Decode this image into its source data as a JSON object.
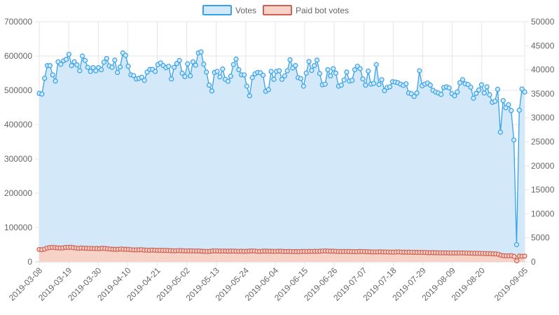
{
  "chart_data": {
    "type": "line",
    "legend_position": "top",
    "grid": true,
    "x": {
      "start": "2019-03-08",
      "end": "2019-09-05",
      "tick_labels": [
        "2019-03-08",
        "2019-03-19",
        "2019-03-30",
        "2019-04-10",
        "2019-04-21",
        "2019-05-02",
        "2019-05-13",
        "2019-05-24",
        "2019-06-04",
        "2019-06-15",
        "2019-06-26",
        "2019-07-07",
        "2019-07-18",
        "2019-07-29",
        "2019-08-09",
        "2019-08-20",
        "2019-09-05"
      ]
    },
    "y_left": {
      "min": 0,
      "max": 700000,
      "ticks": [
        "0",
        "100000",
        "200000",
        "300000",
        "400000",
        "500000",
        "600000",
        "700000"
      ]
    },
    "y_right": {
      "min": 0,
      "max": 50000,
      "ticks": [
        "0",
        "5000",
        "10000",
        "15000",
        "20000",
        "25000",
        "30000",
        "35000",
        "40000",
        "45000",
        "50000"
      ]
    },
    "series": [
      {
        "name": "Votes",
        "axis": "left",
        "line_color": "#36a2eb",
        "fill_color": "#d3e9f9",
        "values": [
          491000,
          489000,
          535000,
          572000,
          572000,
          545000,
          527000,
          583000,
          576000,
          586000,
          590000,
          605000,
          572000,
          583000,
          574000,
          557000,
          600000,
          587000,
          567000,
          555000,
          566000,
          557000,
          566000,
          560000,
          582000,
          593000,
          571000,
          567000,
          588000,
          552000,
          568000,
          609000,
          602000,
          570000,
          545000,
          543000,
          533000,
          535000,
          538000,
          529000,
          553000,
          561000,
          561000,
          555000,
          575000,
          580000,
          572000,
          566000,
          570000,
          533000,
          567000,
          578000,
          587000,
          550000,
          540000,
          577000,
          542000,
          583000,
          573000,
          609000,
          612000,
          576000,
          553000,
          515000,
          498000,
          552000,
          555000,
          539000,
          562000,
          532000,
          526000,
          541000,
          575000,
          591000,
          560000,
          545000,
          545000,
          512000,
          484000,
          537000,
          548000,
          552000,
          551000,
          544000,
          497000,
          502000,
          555000,
          532000,
          555000,
          557000,
          532000,
          542000,
          557000,
          589000,
          565000,
          572000,
          537000,
          534000,
          512000,
          550000,
          584000,
          558000,
          572000,
          588000,
          549000,
          516000,
          518000,
          560000,
          542000,
          563000,
          550000,
          512000,
          515000,
          530000,
          553000,
          527000,
          529000,
          560000,
          570000,
          563000,
          533000,
          515000,
          556000,
          518000,
          520000,
          575000,
          517000,
          531000,
          499000,
          508000,
          510000,
          525000,
          524000,
          522000,
          518000,
          514000,
          519000,
          492000,
          490000,
          482000,
          492000,
          557000,
          513000,
          518000,
          521000,
          515000,
          500000,
          495000,
          492000,
          488000,
          508000,
          510000,
          507000,
          490000,
          484000,
          495000,
          522000,
          531000,
          519000,
          517000,
          509000,
          477000,
          491000,
          501000,
          516000,
          492000,
          510000,
          487000,
          465000,
          468000,
          503000,
          378000,
          470000,
          449000,
          458000,
          441000,
          355000,
          50000,
          442000,
          504000,
          495000
        ]
      },
      {
        "name": "Paid bot votes",
        "axis": "right",
        "line_color": "#cd6155",
        "fill_color": "#f7d2c6",
        "values": [
          2560,
          2520,
          2630,
          2850,
          2950,
          3000,
          2950,
          2900,
          2860,
          2880,
          3000,
          3000,
          3020,
          2950,
          2870,
          2800,
          2880,
          2830,
          2820,
          2780,
          2790,
          2750,
          2770,
          2730,
          2820,
          2790,
          2710,
          2660,
          2600,
          2590,
          2590,
          2670,
          2600,
          2600,
          2580,
          2520,
          2470,
          2480,
          2500,
          2520,
          2440,
          2430,
          2400,
          2440,
          2410,
          2390,
          2400,
          2390,
          2370,
          2350,
          2330,
          2290,
          2290,
          2340,
          2310,
          2280,
          2250,
          2280,
          2260,
          2250,
          2240,
          2250,
          2190,
          2170,
          2150,
          2170,
          2260,
          2250,
          2250,
          2220,
          2230,
          2220,
          2210,
          2220,
          2230,
          2200,
          2180,
          2210,
          2160,
          2190,
          2220,
          2240,
          2250,
          2180,
          2160,
          2200,
          2220,
          2200,
          2190,
          2170,
          2180,
          2190,
          2210,
          2150,
          2130,
          2160,
          2140,
          2120,
          2130,
          2120,
          2150,
          2160,
          2140,
          2170,
          2160,
          2170,
          2180,
          2200,
          2230,
          2260,
          2230,
          2200,
          2200,
          2180,
          2140,
          2130,
          2150,
          2140,
          2160,
          2120,
          2110,
          2100,
          2150,
          2140,
          2120,
          2090,
          2080,
          2050,
          2050,
          2060,
          2080,
          2040,
          2050,
          2030,
          2010,
          2000,
          2040,
          2050,
          2010,
          1990,
          1990,
          2000,
          1980,
          1970,
          1950,
          1950,
          1950,
          1940,
          1900,
          1900,
          1910,
          1880,
          1880,
          1870,
          1860,
          1860,
          1850,
          1830,
          1840,
          1840,
          1850,
          1850,
          1830,
          1810,
          1810,
          1780,
          1770,
          1760,
          1750,
          1740,
          1720,
          1700,
          1690,
          1660,
          1640,
          1560,
          1360,
          1270,
          1250,
          1250,
          1280,
          1110,
          200,
          1200,
          1140,
          1190
        ]
      }
    ]
  }
}
